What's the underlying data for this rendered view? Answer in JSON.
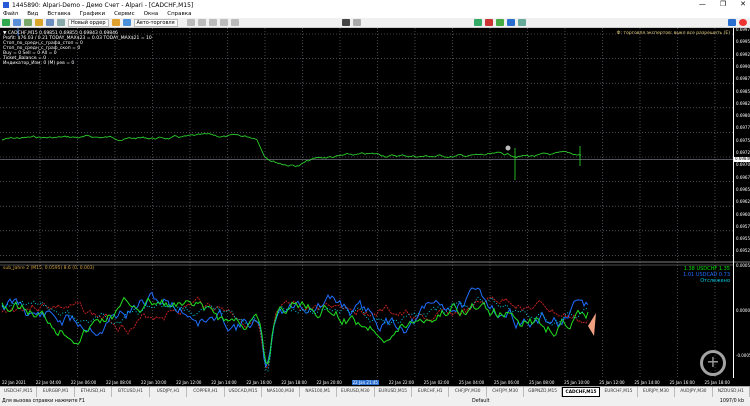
{
  "window": {
    "title": "1445890: Alpari-Demo - Демо Счет - Alpari - [CADCHF,M15]",
    "controls": [
      "—",
      "❐",
      "✕"
    ]
  },
  "menu": [
    "Файл",
    "Вид",
    "Вставка",
    "Графики",
    "Сервис",
    "Окна",
    "Справка"
  ],
  "toolbar": {
    "new_order": "Новый ордер",
    "autotrading": "Авто-торговля"
  },
  "chart": {
    "info_lines": [
      "▼ CADCHF,M15 0.69851 0.69855 0.69843 0.69846",
      "Profit: $76.03 / 0.21 TODAY_MAX$23 = 0.03 TODAY_MAX$21 = 10",
      "Стоп_по_средн_с_графа_стоп = 0",
      "Стоп_по_средн_с_граф_скоп = 0",
      "Buy = 0 Sell = 0 All = 0",
      "Ticket_Balance = 0",
      "Индикатор_Изм: 0 (M) рев = 0"
    ],
    "expert_label": "Ф: торговля экспертов: выкл все разрешить (E)",
    "indicator_label": "sub_Jahre 2 (M15, 0.0595) 8.6 (0, 0.003)",
    "indicator_legend": [
      {
        "text": "1.38 USDCHF 1.35",
        "color": "#00e000"
      },
      {
        "text": "1.01 USDCAD 0.73",
        "color": "#1e6fff"
      },
      {
        "text": "Отслежено",
        "color": "#00c8e0"
      }
    ],
    "price_labels": [
      "0.69975",
      "0.69950",
      "0.69925",
      "0.69900",
      "0.69875",
      "0.69850",
      "0.69825",
      "0.69800",
      "0.69775",
      "0.69750",
      "0.69725",
      "0.69700",
      "0.69675",
      "0.69650",
      "0.69625",
      "0.69600",
      "0.69575",
      "0.69550",
      "0.69525"
    ],
    "current_price": "0.69846",
    "indicator_scale": [
      "0.0005",
      "0.0000",
      "-0.0005"
    ],
    "time_labels": [
      "22 Jan 2021",
      "22 Jan 04:00",
      "22 Jan 06:00",
      "22 Jan 08:00",
      "22 Jan 10:00",
      "22 Jan 12:00",
      "22 Jan 14:00",
      "22 Jan 16:00",
      "22 Jan 18:00",
      "22 Jan 20:00",
      "22 Jan 22:00",
      "25 Jan 02:00",
      "25 Jan 04:00",
      "25 Jan 06:00",
      "25 Jan 08:00",
      "25 Jan 10:00",
      "25 Jan 12:00",
      "25 Jan 14:00",
      "25 Jan 16:00",
      "25 Jan 18:00"
    ],
    "highlighted_time": "22 Jan 21:45"
  },
  "tabs": [
    "USDCHF,M15",
    "EURGBP,M1",
    "ETHUSD,H1",
    "BTCUSD,H1",
    "USDJPY,H1",
    "COPPER,H1",
    "USDCAD,M15",
    "NAS100,M30",
    "NAS100,M1",
    "EURUSD,M30",
    "EURUSD,M15",
    "EURCHF,H1",
    "CHFJPY,M30",
    "CHFJPY,M30",
    "GBPNZD,M15",
    "CADCHF,M15",
    "EURCHF,M15",
    "EURJPY,M30",
    "AUDJPY,M30",
    "NZDUSD,H1"
  ],
  "active_tab": 15,
  "status": {
    "help": "Для вызова справки нажмите F1",
    "profile": "Default",
    "traffic": "1097/0 kb"
  }
}
